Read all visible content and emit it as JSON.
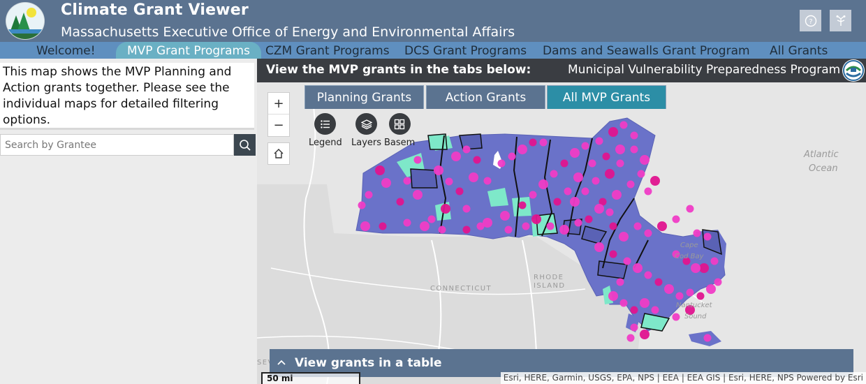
{
  "header": {
    "title": "Climate Grant Viewer",
    "subtitle": "Massachusetts Executive Office of Energy and Environmental Affairs",
    "buttons": [
      {
        "icon": "help-icon"
      },
      {
        "icon": "share-icon"
      }
    ]
  },
  "nav": {
    "items": [
      {
        "label": "Welcome!"
      },
      {
        "label": "MVP Grant Programs"
      },
      {
        "label": "CZM Grant Programs"
      },
      {
        "label": "DCS Grant Programs"
      },
      {
        "label": "Dams and Seawalls Grant Program"
      },
      {
        "label": "All Grants"
      }
    ],
    "active_index": 1
  },
  "left_panel": {
    "intro": "This map shows the MVP Planning and Action grants together. Please see the individual maps for detailed filtering options.",
    "search": {
      "placeholder": "Search by Grantee",
      "value": ""
    }
  },
  "map": {
    "header_left": "View the MVP grants in the tabs below:",
    "header_right": "Municipal Vulnerability Preparedness Program",
    "tabs": [
      {
        "label": "Planning Grants"
      },
      {
        "label": "Action Grants"
      },
      {
        "label": "All MVP Grants"
      }
    ],
    "active_tab": 2,
    "zoom_in": "+",
    "zoom_out": "−",
    "tools": [
      {
        "label": "Legend",
        "icon": "legend-icon"
      },
      {
        "label": "Layers",
        "icon": "layers-icon"
      },
      {
        "label": "Basem",
        "icon": "basemap-icon"
      }
    ],
    "labels": {
      "ocean1": "Atlantic",
      "ocean2": "Ocean",
      "cape1": "Cape",
      "cape2": "Cod Bay",
      "nantucket1": "Nantucket",
      "nantucket2": "Sound",
      "connecticut": "CONNECTICUT",
      "rhode1": "RHODE",
      "rhode2": "ISLAND",
      "sev": "SEV"
    },
    "table_bar": "View grants in a table",
    "scale": "50 mi",
    "attribution": "Esri, HERE, Garmin, USGS, EPA, NPS | EEA | EEA GIS | Esri, HERE, NPS    Powered by Esri"
  },
  "colors": {
    "header_bg": "#5b7390",
    "nav_bg": "#5f8fbf",
    "nav_active": "#6ab0c4",
    "tab_active": "#2c8ea6",
    "municipality_fill": "#6a72c9",
    "grant_marker": "#f03cc6",
    "action_fill": "#7ee8c9"
  }
}
